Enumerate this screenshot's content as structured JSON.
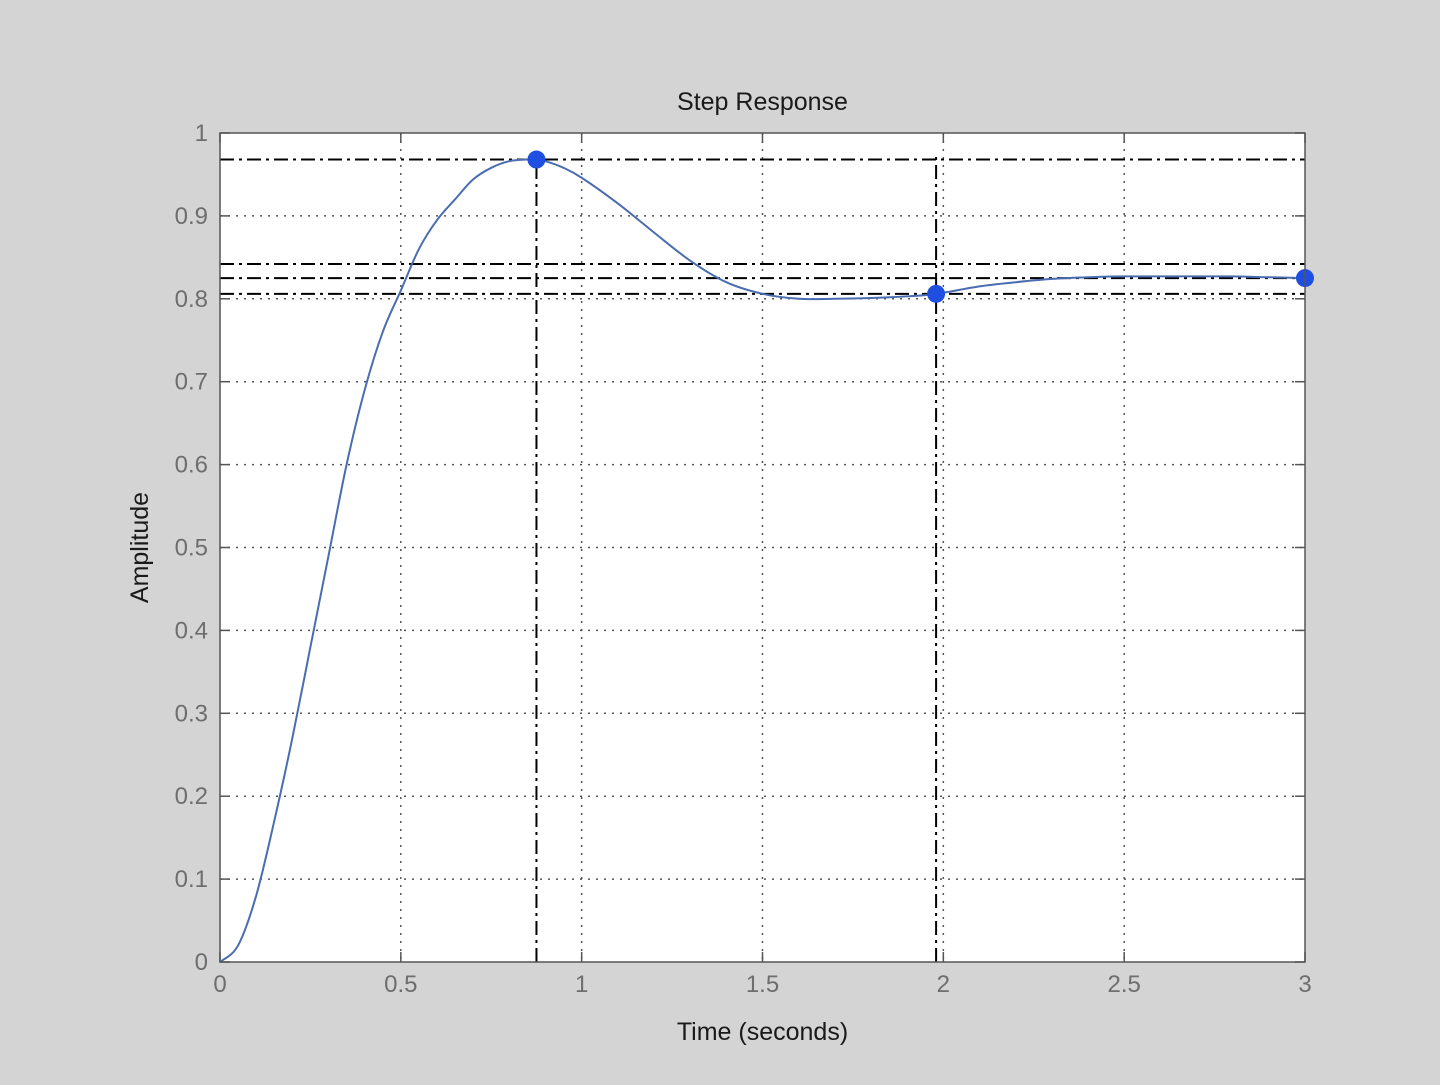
{
  "colors": {
    "figure_background": "#d4d4d4",
    "axes_background": "#ffffff",
    "response_line": "#4a6cb0",
    "marker": "#1f4fe0",
    "reference_lines": "#000000",
    "tick_text": "#6e6e6e",
    "label_text": "#1a1a1a"
  },
  "chart_data": {
    "type": "line",
    "title": "Step Response",
    "xlabel": "Time (seconds)",
    "ylabel": "Amplitude",
    "xlim": [
      0,
      3
    ],
    "ylim": [
      0,
      1
    ],
    "grid": true,
    "xticks": [
      0,
      0.5,
      1,
      1.5,
      2,
      2.5,
      3
    ],
    "xtick_labels": [
      "0",
      "0.5",
      "1",
      "1.5",
      "2",
      "2.5",
      "3"
    ],
    "yticks": [
      0,
      0.1,
      0.2,
      0.3,
      0.4,
      0.5,
      0.6,
      0.7,
      0.8,
      0.9,
      1
    ],
    "ytick_labels": [
      "0",
      "0.1",
      "0.2",
      "0.3",
      "0.4",
      "0.5",
      "0.6",
      "0.7",
      "0.8",
      "0.9",
      "1"
    ],
    "series": [
      {
        "x": [
          0,
          0.05,
          0.1,
          0.15,
          0.2,
          0.25,
          0.3,
          0.35,
          0.4,
          0.45,
          0.5,
          0.55,
          0.6,
          0.65,
          0.7,
          0.75,
          0.8,
          0.85,
          0.875,
          0.9,
          0.95,
          1.0,
          1.1,
          1.2,
          1.3,
          1.4,
          1.5,
          1.6,
          1.7,
          1.8,
          1.9,
          1.98,
          2.1,
          2.2,
          2.3,
          2.4,
          2.5,
          2.6,
          2.7,
          2.8,
          2.9,
          3.0
        ],
        "y": [
          0,
          0.02,
          0.08,
          0.17,
          0.27,
          0.38,
          0.49,
          0.6,
          0.69,
          0.76,
          0.81,
          0.86,
          0.895,
          0.92,
          0.944,
          0.958,
          0.966,
          0.968,
          0.968,
          0.966,
          0.958,
          0.946,
          0.915,
          0.88,
          0.846,
          0.82,
          0.806,
          0.8,
          0.8,
          0.801,
          0.803,
          0.806,
          0.815,
          0.82,
          0.824,
          0.826,
          0.827,
          0.827,
          0.827,
          0.827,
          0.826,
          0.825
        ]
      }
    ],
    "markers": [
      {
        "x": 0.875,
        "y": 0.968
      },
      {
        "x": 1.98,
        "y": 0.806
      },
      {
        "x": 3.0,
        "y": 0.825
      }
    ],
    "reference_lines": {
      "horizontal": [
        0.968,
        0.842,
        0.825,
        0.806
      ],
      "vertical": [
        0.875,
        1.98
      ]
    }
  }
}
